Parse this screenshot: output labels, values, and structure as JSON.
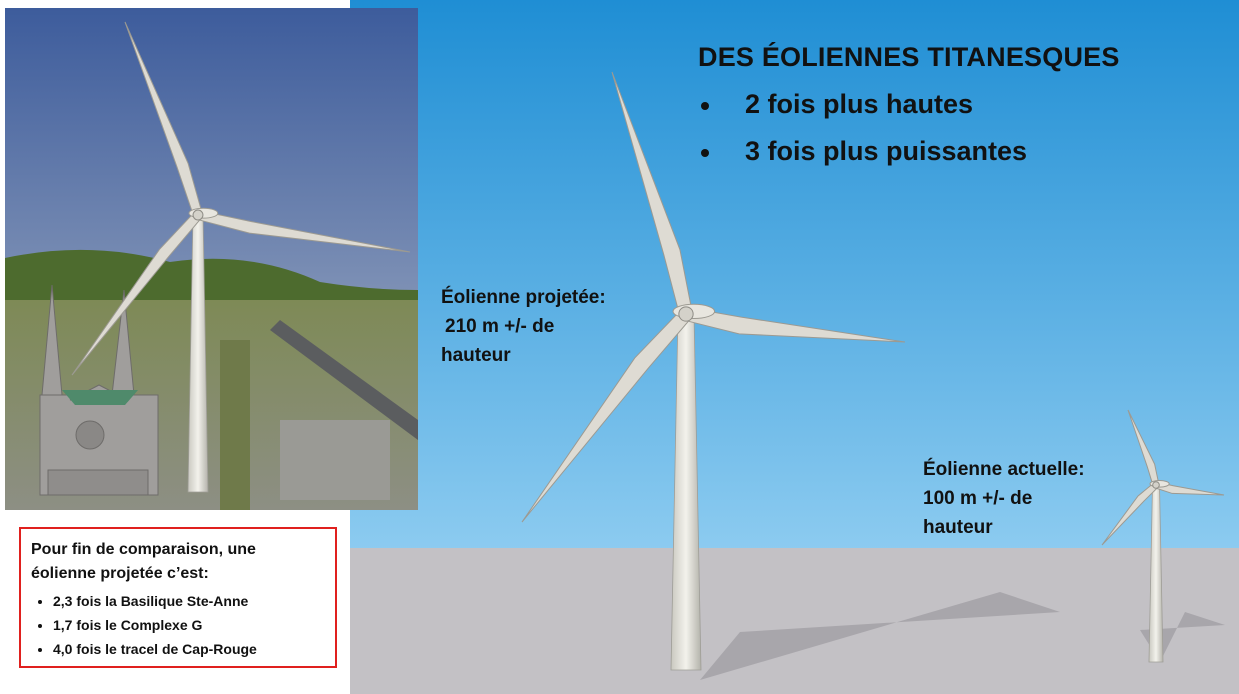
{
  "title": "DES ÉOLIENNES TITANESQUES",
  "bullets": [
    "2 fois plus hautes",
    "3 fois plus puissantes"
  ],
  "projected_label": [
    "Éolienne projetée:",
    "210 m +/- de",
    "hauteur"
  ],
  "current_label": [
    "Éolienne actuelle:",
    "100 m +/- de",
    "hauteur"
  ],
  "comparison": {
    "heading": [
      "Pour fin de comparaison, une",
      "éolienne projetée c’est:"
    ],
    "items": [
      "2,3 fois la Basilique Ste-Anne",
      "1,7 fois le Complexe G",
      "4,0 fois le tracel de Cap-Rouge"
    ]
  }
}
